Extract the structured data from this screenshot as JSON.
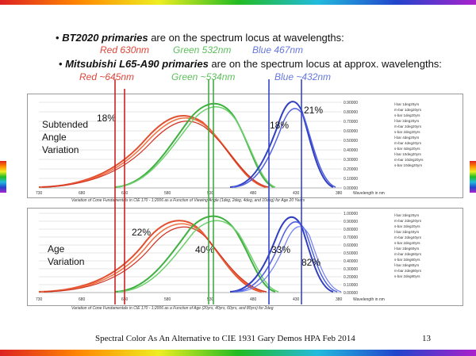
{
  "slide": {
    "line1": {
      "bullet": "•",
      "bold": "BT2020 primaries",
      "rest": " are on the spectrum locus at wavelengths:"
    },
    "line1_wl": {
      "red": "Red 630nm",
      "green": "Green 532nm",
      "blue": "Blue 467nm"
    },
    "line2": {
      "bullet": "•",
      "bold": "Mitsubishi L65-A90 primaries",
      "rest": " are on the spectrum locus at approx. wavelengths:"
    },
    "line2_wl": {
      "red": "Red ~645nm",
      "green": "Green ~534nm",
      "blue": "Blue ~432nm"
    },
    "top_chart": {
      "side_label_1": "Subtended",
      "side_label_2": "Angle",
      "side_label_3": "Variation",
      "pct_red": "18%",
      "pct_blue": "18%",
      "pct_blue2": "21%",
      "caption": "Variation of Cone Fundamentals in CIE 170 - 1:2006 as a Function of Viewing Angle (1deg, 2deg, 4deg, and 10deg) for Age 20 Years",
      "xaxis_label": "Wavelength in nm",
      "x_ticks": [
        "730",
        "680",
        "630",
        "580",
        "530",
        "480",
        "430",
        "380"
      ],
      "y_ticks": [
        "0.90000",
        "0.80000",
        "0.70000",
        "0.60000",
        "0.50000",
        "0.40000",
        "0.30000",
        "0.20000",
        "0.10000",
        "0.00000"
      ],
      "legend": [
        "l-bar 1deg20yrs",
        "m-bar 1deg20yrs",
        "s-bar 1deg20yrs",
        "l-bar 2deg20yrs",
        "m-bar 2deg20yrs",
        "s-bar 2deg20yrs",
        "l-bar 4deg20yrs",
        "m-bar 4deg20yrs",
        "s-bar 4deg20yrs",
        "l-bar 10deg20yrs",
        "m-bar 10deg20yrs",
        "s-bar 10deg20yrs"
      ]
    },
    "bottom_chart": {
      "side_label_1": "Age",
      "side_label_2": "Variation",
      "pct_red": "22%",
      "pct_green": "40%",
      "pct_blue": "33%",
      "pct_blue2": "82%",
      "caption": "Variation of Cone Fundamentals in CIE 170 - 1:2006 as a Function of Age (20yrs, 40yrs, 60yrs, and 80yrs) for 2deg",
      "xaxis_label": "Wavelength in nm",
      "x_ticks": [
        "730",
        "680",
        "630",
        "580",
        "530",
        "480",
        "430",
        "380"
      ],
      "y_ticks": [
        "1.00000",
        "0.90000",
        "0.80000",
        "0.70000",
        "0.60000",
        "0.50000",
        "0.40000",
        "0.30000",
        "0.20000",
        "0.10000",
        "0.00000"
      ],
      "legend": [
        "l-bar 2deg20yrs",
        "m-bar 2deg20yrs",
        "s-bar 2deg20yrs",
        "l-bar 2deg40yrs",
        "m-bar 2deg40yrs",
        "s-bar 2deg40yrs",
        "l-bar 2deg60yrs",
        "m-bar 2deg60yrs",
        "s-bar 2deg60yrs",
        "l-bar 2deg80yrs",
        "m-bar 2deg80yrs",
        "s-bar 2deg80yrs"
      ]
    },
    "footer_text": "Spectral Color As An Alternative to CIE 1931 Gary Demos  HPA Feb 2014",
    "page_number": "13"
  },
  "colors": {
    "red": "#e0453a",
    "green": "#4cbf4c",
    "blue": "#5566dd",
    "line_red": "#cc2222",
    "line_green": "#44aa44",
    "line_blue": "#3344cc"
  }
}
